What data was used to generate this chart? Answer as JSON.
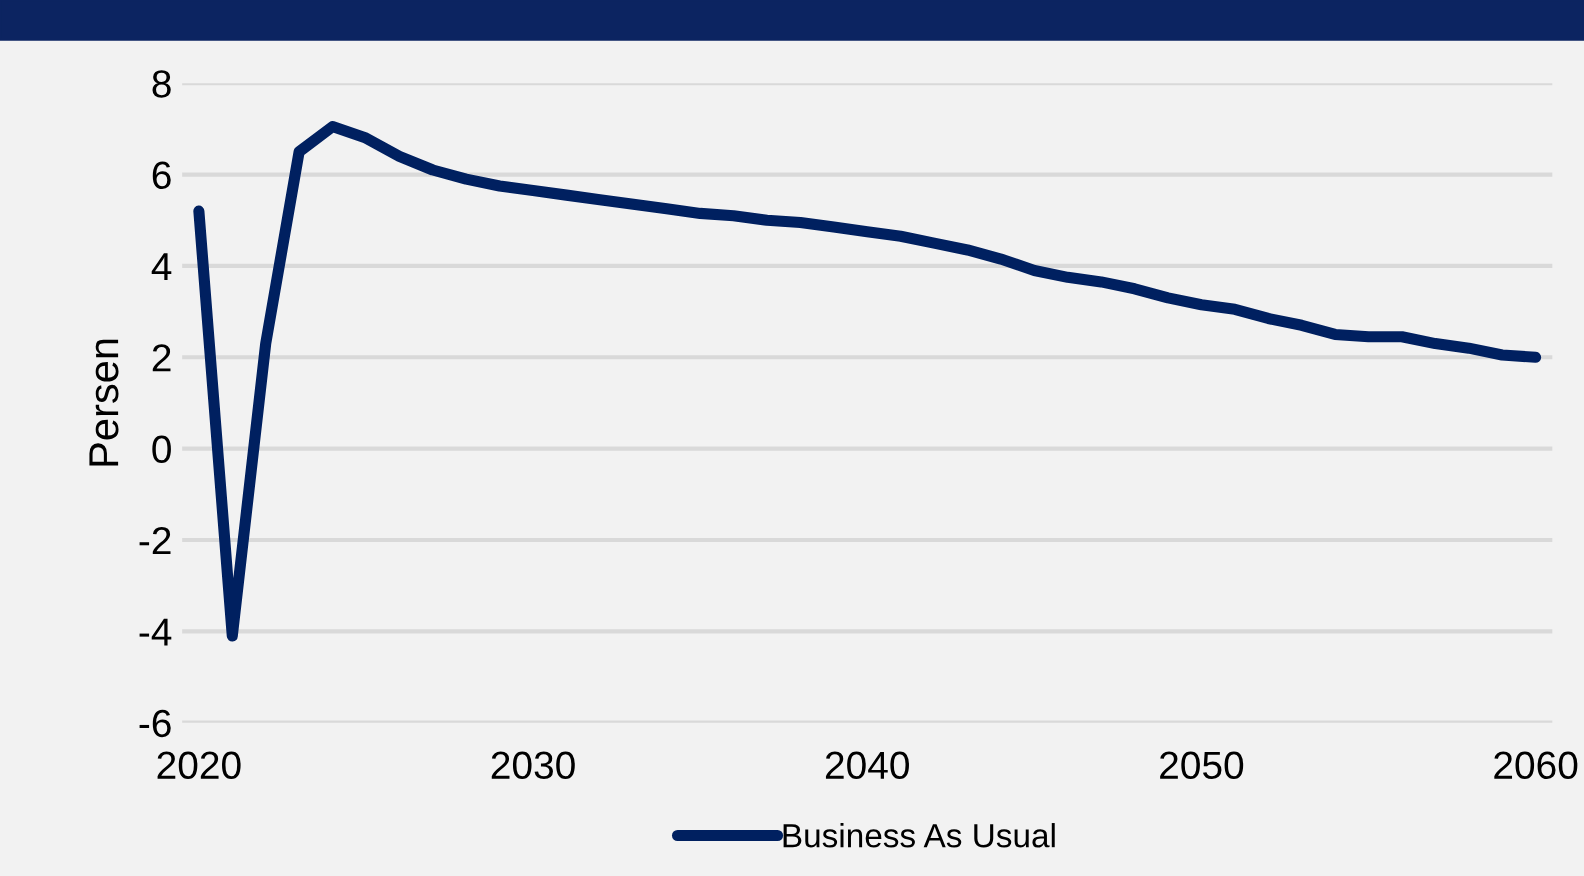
{
  "chart_data": {
    "type": "line",
    "ylabel": "Persen",
    "x": [
      2020,
      2021,
      2022,
      2023,
      2024,
      2025,
      2026,
      2027,
      2028,
      2029,
      2030,
      2031,
      2032,
      2033,
      2034,
      2035,
      2036,
      2037,
      2038,
      2039,
      2040,
      2041,
      2042,
      2043,
      2044,
      2045,
      2046,
      2047,
      2048,
      2049,
      2050,
      2051,
      2052,
      2053,
      2054,
      2055,
      2056,
      2057,
      2058,
      2059,
      2060
    ],
    "series": [
      {
        "name": "Business As Usual",
        "color": "#002060",
        "values": [
          5.2,
          -4.1,
          2.3,
          6.5,
          7.05,
          6.8,
          6.4,
          6.1,
          5.9,
          5.75,
          5.65,
          5.55,
          5.45,
          5.35,
          5.25,
          5.15,
          5.1,
          5.0,
          4.95,
          4.85,
          4.75,
          4.65,
          4.5,
          4.35,
          4.15,
          3.9,
          3.75,
          3.65,
          3.5,
          3.3,
          3.15,
          3.05,
          2.85,
          2.7,
          2.5,
          2.45,
          2.45,
          2.3,
          2.2,
          2.05,
          2.0
        ]
      }
    ],
    "xlim": [
      2019.5,
      2060.5
    ],
    "xticks": [
      2020,
      2030,
      2040,
      2050,
      2060
    ],
    "ylim": [
      -6,
      8
    ],
    "yticks": [
      -6,
      -4,
      -2,
      0,
      2,
      4,
      6,
      8
    ],
    "grid": "y",
    "legend": "bottom",
    "marker": "none",
    "line_style": "solid"
  }
}
